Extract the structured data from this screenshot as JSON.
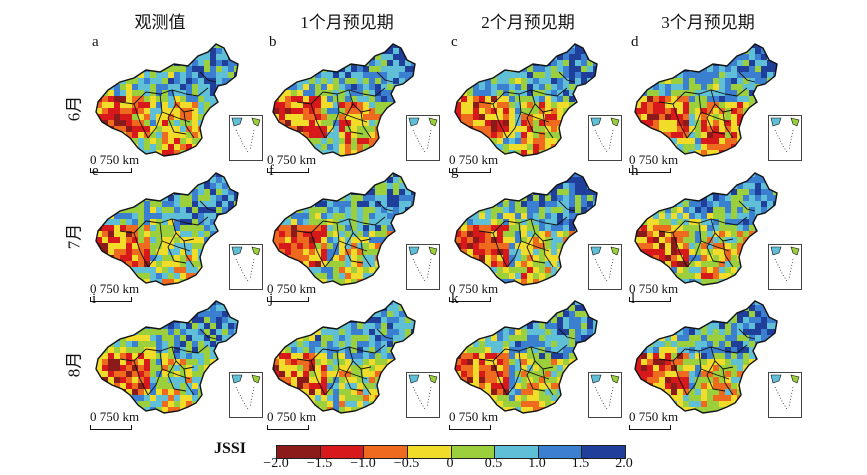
{
  "columns": [
    "观测值",
    "1个月预见期",
    "2个月预见期",
    "3个月预见期"
  ],
  "rows": [
    "6月",
    "7月",
    "8月"
  ],
  "panels": [
    {
      "letter": "a",
      "scale": "750 km"
    },
    {
      "letter": "b",
      "scale": "750 km"
    },
    {
      "letter": "c",
      "scale": "750 km"
    },
    {
      "letter": "d",
      "scale": "750 km"
    },
    {
      "letter": "e",
      "scale": "750 km"
    },
    {
      "letter": "f",
      "scale": "750 km"
    },
    {
      "letter": "g",
      "scale": "750 km"
    },
    {
      "letter": "h",
      "scale": "750 km"
    },
    {
      "letter": "i",
      "scale": "750 km"
    },
    {
      "letter": "j",
      "scale": "750 km"
    },
    {
      "letter": "k",
      "scale": "750 km"
    },
    {
      "letter": "l",
      "scale": "750 km"
    }
  ],
  "scale_zero": "0",
  "legend": {
    "label": "JSSI",
    "colors": [
      "#8b1a1a",
      "#d7191c",
      "#ee6a1f",
      "#f2dc2a",
      "#9ccf3c",
      "#5fbfd6",
      "#3a7fd0",
      "#1f3f9a"
    ],
    "ticks": [
      "−2.0",
      "−1.5",
      "−1.0",
      "−0.5",
      "0",
      "0.5",
      "1.0",
      "1.5",
      "2.0"
    ]
  }
}
